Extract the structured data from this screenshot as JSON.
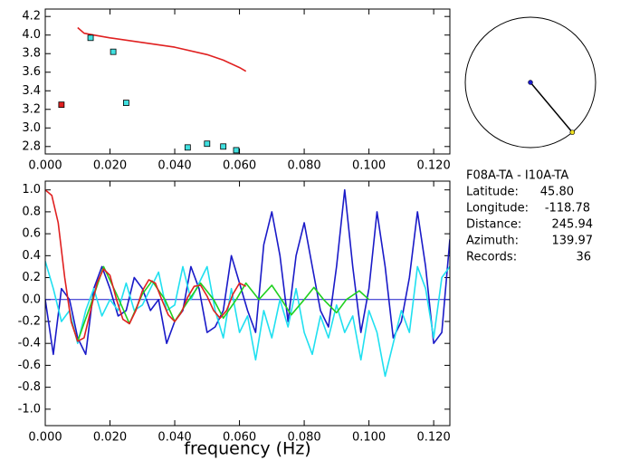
{
  "chart_data": [
    {
      "type": "scatter",
      "xlim": [
        0,
        0.125
      ],
      "xticks": [
        {
          "value": 0,
          "label": "0.000"
        },
        {
          "value": 0.02,
          "label": "0.020"
        },
        {
          "value": 0.04,
          "label": "0.040"
        },
        {
          "value": 0.06,
          "label": "0.060"
        },
        {
          "value": 0.08,
          "label": "0.080"
        },
        {
          "value": 0.1,
          "label": "0.100"
        },
        {
          "value": 0.12,
          "label": "0.120"
        }
      ],
      "ylim": [
        2.72,
        4.28
      ],
      "yticks": [
        2.8,
        {
          "value": 3,
          "label": "3.0"
        },
        3.2,
        3.4,
        3.6,
        3.8,
        {
          "value": 4,
          "label": "4.0"
        },
        4.2
      ],
      "series": [
        {
          "mode": "line",
          "color": "#e02020",
          "x": [
            0.01,
            0.012,
            0.015,
            0.02,
            0.03,
            0.04,
            0.05,
            0.055,
            0.06,
            0.062
          ],
          "values": [
            4.08,
            4.02,
            4.0,
            3.97,
            3.92,
            3.87,
            3.79,
            3.73,
            3.65,
            3.61
          ]
        },
        {
          "mode": "markers",
          "color": "#e02020",
          "x": [
            0.005
          ],
          "values": [
            3.25
          ]
        },
        {
          "mode": "markers",
          "color": "#40e0e0",
          "x": [
            0.014,
            0.021,
            0.025,
            0.044,
            0.05,
            0.055,
            0.059
          ],
          "values": [
            3.97,
            3.82,
            3.27,
            2.79,
            2.83,
            2.8,
            2.76
          ]
        }
      ]
    },
    {
      "type": "line",
      "xlabel": "frequency (Hz)",
      "xlim": [
        0,
        0.125
      ],
      "xticks": [
        {
          "value": 0,
          "label": "0.000"
        },
        {
          "value": 0.02,
          "label": "0.020"
        },
        {
          "value": 0.04,
          "label": "0.040"
        },
        {
          "value": 0.06,
          "label": "0.060"
        },
        {
          "value": 0.08,
          "label": "0.080"
        },
        {
          "value": 0.1,
          "label": "0.100"
        },
        {
          "value": 0.12,
          "label": "0.120"
        }
      ],
      "ylim": [
        -1.15,
        1.08
      ],
      "yticks": [
        {
          "value": 1,
          "label": "1.0"
        },
        0.8,
        0.6,
        0.4,
        0.2,
        {
          "value": 0,
          "label": "0.0"
        },
        -0.2,
        -0.4,
        -0.6,
        -0.8,
        {
          "value": -1,
          "label": "-1.0"
        }
      ],
      "series": [
        {
          "color": "#1a1ac8",
          "x": [
            0,
            0.0025,
            0.005,
            0.0075,
            0.01,
            0.0125,
            0.015,
            0.0175,
            0.02,
            0.0225,
            0.025,
            0.0275,
            0.03,
            0.0325,
            0.035,
            0.0375,
            0.04,
            0.0425,
            0.045,
            0.0475,
            0.05,
            0.0525,
            0.055,
            0.0575,
            0.06,
            0.0625,
            0.065,
            0.0675,
            0.07,
            0.0725,
            0.075,
            0.0775,
            0.08,
            0.0825,
            0.085,
            0.0875,
            0.09,
            0.0925,
            0.095,
            0.0975,
            0.1,
            0.1025,
            0.105,
            0.1075,
            0.11,
            0.1125,
            0.115,
            0.1175,
            0.12,
            0.1225,
            0.125
          ],
          "values": [
            0.0,
            -0.5,
            0.1,
            0.0,
            -0.35,
            -0.5,
            0.1,
            0.3,
            0.1,
            -0.15,
            -0.1,
            0.2,
            0.1,
            -0.1,
            0.0,
            -0.4,
            -0.2,
            -0.1,
            0.3,
            0.1,
            -0.3,
            -0.25,
            -0.1,
            0.4,
            0.15,
            -0.1,
            -0.3,
            0.5,
            0.8,
            0.4,
            -0.2,
            0.4,
            0.7,
            0.3,
            -0.1,
            -0.25,
            0.3,
            1.0,
            0.3,
            -0.3,
            0.1,
            0.8,
            0.3,
            -0.35,
            -0.2,
            0.2,
            0.8,
            0.3,
            -0.4,
            -0.3,
            0.55
          ]
        },
        {
          "color": "#20e0f0",
          "x": [
            0,
            0.0025,
            0.005,
            0.0075,
            0.01,
            0.0125,
            0.015,
            0.0175,
            0.02,
            0.0225,
            0.025,
            0.0275,
            0.03,
            0.0325,
            0.035,
            0.0375,
            0.04,
            0.0425,
            0.045,
            0.0475,
            0.05,
            0.0525,
            0.055,
            0.0575,
            0.06,
            0.0625,
            0.065,
            0.0675,
            0.07,
            0.0725,
            0.075,
            0.0775,
            0.08,
            0.0825,
            0.085,
            0.0875,
            0.09,
            0.0925,
            0.095,
            0.0975,
            0.1,
            0.1025,
            0.105,
            0.1075,
            0.11,
            0.1125,
            0.115,
            0.1175,
            0.12,
            0.1225,
            0.125
          ],
          "values": [
            0.35,
            0.1,
            -0.2,
            -0.1,
            -0.4,
            -0.1,
            0.1,
            -0.15,
            0.0,
            -0.1,
            0.15,
            -0.1,
            -0.05,
            0.1,
            0.25,
            -0.1,
            -0.05,
            0.3,
            0.0,
            0.15,
            0.3,
            -0.1,
            -0.35,
            0.1,
            -0.3,
            -0.15,
            -0.55,
            -0.1,
            -0.35,
            0.0,
            -0.25,
            0.1,
            -0.3,
            -0.5,
            -0.15,
            -0.35,
            -0.05,
            -0.3,
            -0.15,
            -0.55,
            -0.1,
            -0.3,
            -0.7,
            -0.4,
            -0.1,
            -0.3,
            0.3,
            0.1,
            -0.35,
            0.2,
            0.3
          ]
        },
        {
          "color": "#20d020",
          "x": [
            0.008,
            0.01,
            0.014,
            0.018,
            0.022,
            0.026,
            0.03,
            0.033,
            0.037,
            0.04,
            0.044,
            0.048,
            0.052,
            0.055,
            0.059,
            0.062,
            0.066,
            0.07,
            0.073,
            0.076,
            0.08,
            0.083,
            0.086,
            0.09,
            0.093,
            0.097,
            0.1
          ],
          "values": [
            -0.2,
            -0.38,
            -0.05,
            0.3,
            0.05,
            -0.22,
            0.05,
            0.17,
            0.0,
            -0.2,
            -0.02,
            0.15,
            0.0,
            -0.17,
            0.0,
            0.15,
            0.0,
            0.13,
            0.0,
            -0.14,
            0.0,
            0.11,
            0.0,
            -0.12,
            0.0,
            0.08,
            0.0
          ]
        },
        {
          "color": "#e02020",
          "x": [
            0,
            0.002,
            0.004,
            0.006,
            0.008,
            0.01,
            0.012,
            0.014,
            0.016,
            0.018,
            0.02,
            0.022,
            0.024,
            0.026,
            0.028,
            0.03,
            0.032,
            0.034,
            0.036,
            0.038,
            0.04,
            0.042,
            0.044,
            0.046,
            0.048,
            0.05,
            0.052,
            0.054,
            0.056,
            0.058,
            0.06,
            0.062
          ],
          "values": [
            1.0,
            0.95,
            0.7,
            0.2,
            -0.2,
            -0.38,
            -0.35,
            -0.1,
            0.15,
            0.28,
            0.22,
            0.0,
            -0.18,
            -0.22,
            -0.1,
            0.08,
            0.18,
            0.15,
            0.0,
            -0.14,
            -0.2,
            -0.12,
            0.02,
            0.12,
            0.13,
            0.03,
            -0.1,
            -0.17,
            -0.1,
            0.05,
            0.15,
            0.12
          ]
        }
      ]
    }
  ],
  "info": {
    "title": "F08A-TA - I10A-TA",
    "rows": [
      {
        "label": "Latitude:",
        "value": "45.80"
      },
      {
        "label": "Longitude:",
        "value": "-118.78"
      },
      {
        "label": "Distance:",
        "value": "245.94"
      },
      {
        "label": "Azimuth:",
        "value": "139.97"
      },
      {
        "label": "Records:",
        "value": "36"
      }
    ]
  }
}
